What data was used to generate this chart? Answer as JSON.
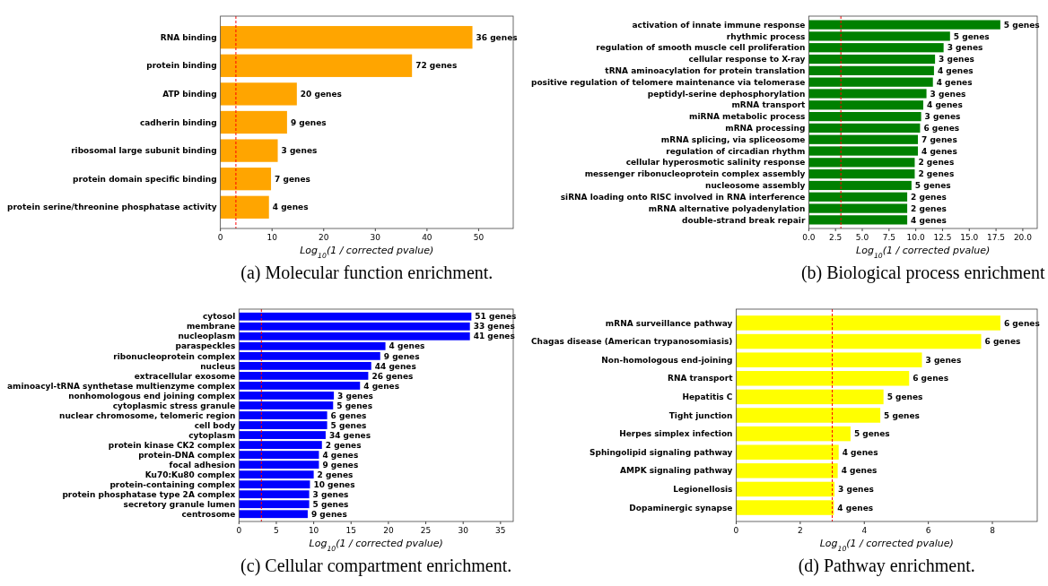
{
  "chart_data": [
    {
      "type": "bar",
      "orientation": "horizontal",
      "title": "(a) Molecular function enrichment.",
      "xlabel": "Log$_{10}$(1 / corrected pvalue)",
      "color": "#ffa500",
      "categories": [
        "RNA binding",
        "protein binding",
        "ATP binding",
        "cadherin binding",
        "ribosomal large subunit binding",
        "protein domain specific binding",
        "protein serine/threonine phosphatase activity"
      ],
      "values": [
        48.8,
        37.1,
        14.8,
        12.9,
        11.1,
        9.8,
        9.4
      ],
      "annotations": [
        {
          "text": "36 genes",
          "x": 48.8,
          "y": "RNA binding"
        },
        {
          "text": "72 genes",
          "x": 37.1,
          "y": "protein binding"
        },
        {
          "text": "20 genes",
          "x": 14.8,
          "y": "ATP binding"
        },
        {
          "text": "9 genes",
          "x": 12.9,
          "y": "cadherin binding"
        },
        {
          "text": "3 genes",
          "x": 11.1,
          "y": "ribosomal large subunit binding"
        },
        {
          "text": "7 genes",
          "x": 9.8,
          "y": "protein domain specific binding"
        },
        {
          "text": "4 genes",
          "x": 9.4,
          "y": "protein serine/threonine phosphatase activity"
        }
      ],
      "xlim": [
        0,
        56.7
      ],
      "xticks": [
        0,
        10,
        20,
        30,
        40,
        50
      ],
      "ref_lines": [
        {
          "axis": "x",
          "value": 3,
          "color": "#ff0000",
          "line_style": "dashed"
        }
      ]
    },
    {
      "type": "bar",
      "orientation": "horizontal",
      "title": "(b) Biological process enrichment",
      "xlabel": "Log$_{10}$(1 / corrected pvalue)",
      "color": "#008000",
      "categories": [
        "activation of innate immune response",
        "rhythmic process",
        "regulation of smooth muscle cell proliferation",
        "cellular response to X-ray",
        "tRNA aminoacylation for protein translation",
        "positive regulation of telomere maintenance via telomerase",
        "peptidyl-serine dephosphorylation",
        "mRNA transport",
        "miRNA metabolic process",
        "mRNA processing",
        "mRNA splicing, via spliceosome",
        "regulation of circadian rhythm",
        "cellular hyperosmotic salinity response",
        "messenger ribonucleoprotein complex assembly",
        "nucleosome assembly",
        "siRNA loading onto RISC involved in RNA interference",
        "mRNA alternative polyadenylation",
        "double-strand break repair"
      ],
      "values": [
        17.9,
        13.2,
        12.6,
        11.8,
        11.7,
        11.6,
        11.0,
        10.7,
        10.5,
        10.4,
        10.2,
        10.2,
        9.9,
        9.9,
        9.6,
        9.2,
        9.2,
        9.2
      ],
      "annotations": [
        {
          "text": "5 genes",
          "x": 17.9,
          "y": "activation of innate immune response"
        },
        {
          "text": "5 genes",
          "x": 13.2,
          "y": "rhythmic process"
        },
        {
          "text": "3 genes",
          "x": 12.6,
          "y": "regulation of smooth muscle cell proliferation"
        },
        {
          "text": "3 genes",
          "x": 11.8,
          "y": "cellular response to X-ray"
        },
        {
          "text": "4 genes",
          "x": 11.7,
          "y": "tRNA aminoacylation for protein translation"
        },
        {
          "text": "4 genes",
          "x": 11.6,
          "y": "positive regulation of telomere maintenance via telomerase"
        },
        {
          "text": "3 genes",
          "x": 11.0,
          "y": "peptidyl-serine dephosphorylation"
        },
        {
          "text": "4 genes",
          "x": 10.7,
          "y": "mRNA transport"
        },
        {
          "text": "3 genes",
          "x": 10.5,
          "y": "miRNA metabolic process"
        },
        {
          "text": "6 genes",
          "x": 10.4,
          "y": "mRNA processing"
        },
        {
          "text": "7 genes",
          "x": 10.2,
          "y": "mRNA splicing, via spliceosome"
        },
        {
          "text": "4 genes",
          "x": 10.2,
          "y": "regulation of circadian rhythm"
        },
        {
          "text": "2 genes",
          "x": 9.9,
          "y": "cellular hyperosmotic salinity response"
        },
        {
          "text": "2 genes",
          "x": 9.9,
          "y": "messenger ribonucleoprotein complex assembly"
        },
        {
          "text": "5 genes",
          "x": 9.6,
          "y": "nucleosome assembly"
        },
        {
          "text": "2 genes",
          "x": 9.2,
          "y": "siRNA loading onto RISC involved in RNA interference"
        },
        {
          "text": "2 genes",
          "x": 9.2,
          "y": "mRNA alternative polyadenylation"
        },
        {
          "text": "4 genes",
          "x": 9.2,
          "y": "double-strand break repair"
        }
      ],
      "xlim": [
        0,
        21.35
      ],
      "xticks": [
        {
          "value": 0,
          "label": "0.0"
        },
        {
          "value": 2.5,
          "label": "2.5"
        },
        {
          "value": 5,
          "label": "5.0"
        },
        {
          "value": 7.5,
          "label": "7.5"
        },
        {
          "value": 10,
          "label": "10.0"
        },
        {
          "value": 12.5,
          "label": "12.5"
        },
        {
          "value": 15,
          "label": "15.0"
        },
        {
          "value": 17.5,
          "label": "17.5"
        },
        {
          "value": 20,
          "label": "20.0"
        }
      ],
      "ref_lines": [
        {
          "axis": "x",
          "value": 3,
          "color": "#ff0000",
          "line_style": "dashed"
        }
      ]
    },
    {
      "type": "bar",
      "orientation": "horizontal",
      "title": "(c) Cellular compartment enrichment.",
      "xlabel": "Log$_{10}$(1 / corrected pvalue)",
      "color": "#0000ff",
      "categories": [
        "cytosol",
        "membrane",
        "nucleoplasm",
        "paraspeckles",
        "ribonucleoprotein complex",
        "nucleus",
        "extracellular exosome",
        "aminoacyl-tRNA synthetase multienzyme complex",
        "nonhomologous end joining complex",
        "cytoplasmic stress granule",
        "nuclear chromosome, telomeric region",
        "cell body",
        "cytoplasm",
        "protein kinase CK2 complex",
        "protein-DNA complex",
        "focal adhesion",
        "Ku70:Ku80 complex",
        "protein-containing complex",
        "protein phosphatase type 2A complex",
        "secretory granule lumen",
        "centrosome"
      ],
      "values": [
        31.1,
        30.9,
        30.9,
        19.6,
        18.9,
        17.7,
        17.3,
        16.2,
        12.7,
        12.6,
        11.8,
        11.8,
        11.6,
        11.1,
        10.7,
        10.7,
        10.0,
        9.5,
        9.4,
        9.4,
        9.2
      ],
      "annotations": [
        {
          "text": "51 genes",
          "x": 31.1,
          "y": "cytosol"
        },
        {
          "text": "33 genes",
          "x": 30.9,
          "y": "membrane"
        },
        {
          "text": "41 genes",
          "x": 30.9,
          "y": "nucleoplasm"
        },
        {
          "text": "4 genes",
          "x": 19.6,
          "y": "paraspeckles"
        },
        {
          "text": "9 genes",
          "x": 18.9,
          "y": "ribonucleoprotein complex"
        },
        {
          "text": "44 genes",
          "x": 17.7,
          "y": "nucleus"
        },
        {
          "text": "26 genes",
          "x": 17.3,
          "y": "extracellular exosome"
        },
        {
          "text": "4 genes",
          "x": 16.2,
          "y": "aminoacyl-tRNA synthetase multienzyme complex"
        },
        {
          "text": "3 genes",
          "x": 12.7,
          "y": "nonhomologous end joining complex"
        },
        {
          "text": "5 genes",
          "x": 12.6,
          "y": "cytoplasmic stress granule"
        },
        {
          "text": "6 genes",
          "x": 11.8,
          "y": "nuclear chromosome, telomeric region"
        },
        {
          "text": "5 genes",
          "x": 11.8,
          "y": "cell body"
        },
        {
          "text": "34 genes",
          "x": 11.6,
          "y": "cytoplasm"
        },
        {
          "text": "2 genes",
          "x": 11.1,
          "y": "protein kinase CK2 complex"
        },
        {
          "text": "4 genes",
          "x": 10.7,
          "y": "protein-DNA complex"
        },
        {
          "text": "9 genes",
          "x": 10.7,
          "y": "focal adhesion"
        },
        {
          "text": "2 genes",
          "x": 10.0,
          "y": "Ku70:Ku80 complex"
        },
        {
          "text": "10 genes",
          "x": 9.5,
          "y": "protein-containing complex"
        },
        {
          "text": "3 genes",
          "x": 9.4,
          "y": "protein phosphatase type 2A complex"
        },
        {
          "text": "5 genes",
          "x": 9.4,
          "y": "secretory granule lumen"
        },
        {
          "text": "9 genes",
          "x": 9.2,
          "y": "centrosome"
        }
      ],
      "xlim": [
        0,
        36.7
      ],
      "xticks": [
        0,
        5,
        10,
        15,
        20,
        25,
        30,
        35
      ],
      "ref_lines": [
        {
          "axis": "x",
          "value": 3,
          "color": "#ff0000",
          "line_style": "dashed"
        }
      ]
    },
    {
      "type": "bar",
      "orientation": "horizontal",
      "title": "(d) Pathway enrichment.",
      "xlabel": "Log$_{10}$(1 / corrected pvalue)",
      "color": "#ffff00",
      "categories": [
        "mRNA surveillance pathway",
        "Chagas disease (American trypanosomiasis)",
        "Non-homologous end-joining",
        "RNA transport",
        "Hepatitis C",
        "Tight junction",
        "Herpes simplex infection",
        "Sphingolipid signaling pathway",
        "AMPK signaling pathway",
        "Legionellosis",
        "Dopaminergic synapse"
      ],
      "values": [
        8.25,
        7.65,
        5.8,
        5.4,
        4.6,
        4.5,
        3.57,
        3.2,
        3.17,
        3.07,
        3.05
      ],
      "annotations": [
        {
          "text": "6 genes",
          "x": 8.25,
          "y": "mRNA surveillance pathway"
        },
        {
          "text": "6 genes",
          "x": 7.65,
          "y": "Chagas disease (American trypanosomiasis)"
        },
        {
          "text": "3 genes",
          "x": 5.8,
          "y": "Non-homologous end-joining"
        },
        {
          "text": "6 genes",
          "x": 5.4,
          "y": "RNA transport"
        },
        {
          "text": "5 genes",
          "x": 4.6,
          "y": "Hepatitis C"
        },
        {
          "text": "5 genes",
          "x": 4.5,
          "y": "Tight junction"
        },
        {
          "text": "5 genes",
          "x": 3.57,
          "y": "Herpes simplex infection"
        },
        {
          "text": "4 genes",
          "x": 3.2,
          "y": "Sphingolipid signaling pathway"
        },
        {
          "text": "4 genes",
          "x": 3.17,
          "y": "AMPK signaling pathway"
        },
        {
          "text": "3 genes",
          "x": 3.07,
          "y": "Legionellosis"
        },
        {
          "text": "4 genes",
          "x": 3.05,
          "y": "Dopaminergic synapse"
        }
      ],
      "xlim": [
        0,
        9.4
      ],
      "xticks": [
        0,
        2,
        4,
        6,
        8
      ],
      "ref_lines": [
        {
          "axis": "x",
          "value": 3,
          "color": "#ff0000",
          "line_style": "dashed"
        }
      ]
    }
  ]
}
